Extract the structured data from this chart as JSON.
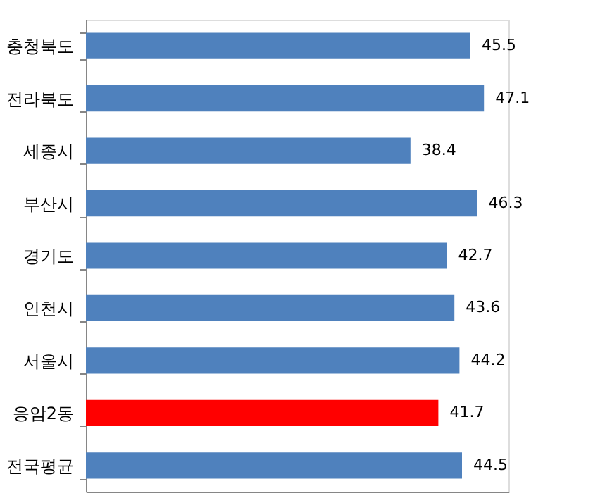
{
  "chart_data": {
    "type": "bar",
    "orientation": "horizontal",
    "categories": [
      "충청북도",
      "전라북도",
      "세종시",
      "부산시",
      "경기도",
      "인천시",
      "서울시",
      "응암2동",
      "전국평균"
    ],
    "values": [
      45.5,
      47.1,
      38.4,
      46.3,
      42.7,
      43.6,
      44.2,
      41.7,
      44.5
    ],
    "colors": [
      "#4f81bd",
      "#4f81bd",
      "#4f81bd",
      "#4f81bd",
      "#4f81bd",
      "#4f81bd",
      "#4f81bd",
      "#ff0000",
      "#4f81bd"
    ],
    "xlim": [
      0,
      50
    ],
    "tick_labels": "y",
    "data_labels": true
  }
}
